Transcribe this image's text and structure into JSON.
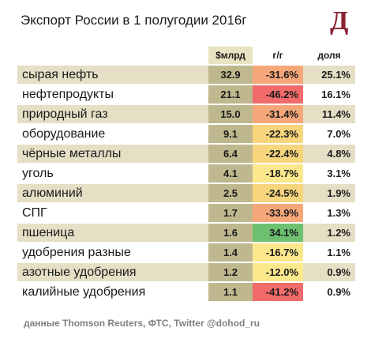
{
  "title": "Экспорт России в 1 полугодии 2016г",
  "logo": "Д",
  "source": "данные Thomson Reuters, ФТС, Twitter @dohod_ru",
  "colors": {
    "logo": "#8b2332",
    "value_column": "#bfb88e",
    "band": "#e4dfc5",
    "yoy_scale": [
      "#f26b6b",
      "#f5a77a",
      "#f7d57d",
      "#fbe88c",
      "#6cc070"
    ]
  },
  "chart_data": {
    "type": "table",
    "columns": [
      "",
      "$млрд",
      "г/г",
      "доля"
    ],
    "rows": [
      {
        "category": "сырая нефть",
        "value": "32.9",
        "yoy": "-31.6%",
        "share": "25.1%",
        "yoy_num": -31.6
      },
      {
        "category": "нефтепродукты",
        "value": "21.1",
        "yoy": "-46.2%",
        "share": "16.1%",
        "yoy_num": -46.2
      },
      {
        "category": "природный газ",
        "value": "15.0",
        "yoy": "-31.4%",
        "share": "11.4%",
        "yoy_num": -31.4
      },
      {
        "category": "оборудование",
        "value": "9.1",
        "yoy": "-22.3%",
        "share": "7.0%",
        "yoy_num": -22.3
      },
      {
        "category": "чёрные металлы",
        "value": "6.4",
        "yoy": "-22.4%",
        "share": "4.8%",
        "yoy_num": -22.4
      },
      {
        "category": "уголь",
        "value": "4.1",
        "yoy": "-18.7%",
        "share": "3.1%",
        "yoy_num": -18.7
      },
      {
        "category": "алюминий",
        "value": "2.5",
        "yoy": "-24.5%",
        "share": "1.9%",
        "yoy_num": -24.5
      },
      {
        "category": "СПГ",
        "value": "1.7",
        "yoy": "-33.9%",
        "share": "1.3%",
        "yoy_num": -33.9
      },
      {
        "category": "пшеница",
        "value": "1.6",
        "yoy": "34.1%",
        "share": "1.2%",
        "yoy_num": 34.1
      },
      {
        "category": "удобрения разные",
        "value": "1.4",
        "yoy": "-16.7%",
        "share": "1.1%",
        "yoy_num": -16.7
      },
      {
        "category": "азотные удобрения",
        "value": "1.2",
        "yoy": "-12.0%",
        "share": "0.9%",
        "yoy_num": -12.0
      },
      {
        "category": "калийные удобрения",
        "value": "1.1",
        "yoy": "-41.2%",
        "share": "0.9%",
        "yoy_num": -41.2
      }
    ]
  }
}
